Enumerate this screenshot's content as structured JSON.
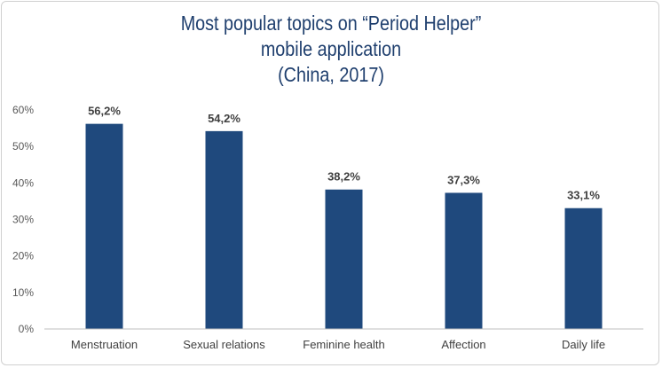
{
  "chart_data": {
    "type": "bar",
    "title": [
      "Most popular topics on “Period Helper”",
      "mobile application",
      "(China, 2017)"
    ],
    "categories": [
      "Menstruation",
      "Sexual relations",
      "Feminine health",
      "Affection",
      "Daily life"
    ],
    "values": [
      56.2,
      54.2,
      38.2,
      37.3,
      33.1
    ],
    "data_labels": [
      "56,2%",
      "54,2%",
      "38,2%",
      "37,3%",
      "33,1%"
    ],
    "y_ticks": [
      "0%",
      "10%",
      "20%",
      "30%",
      "40%",
      "50%",
      "60%"
    ],
    "ylim": [
      0,
      60
    ],
    "grid": false,
    "bar_color": "#1f497d"
  }
}
